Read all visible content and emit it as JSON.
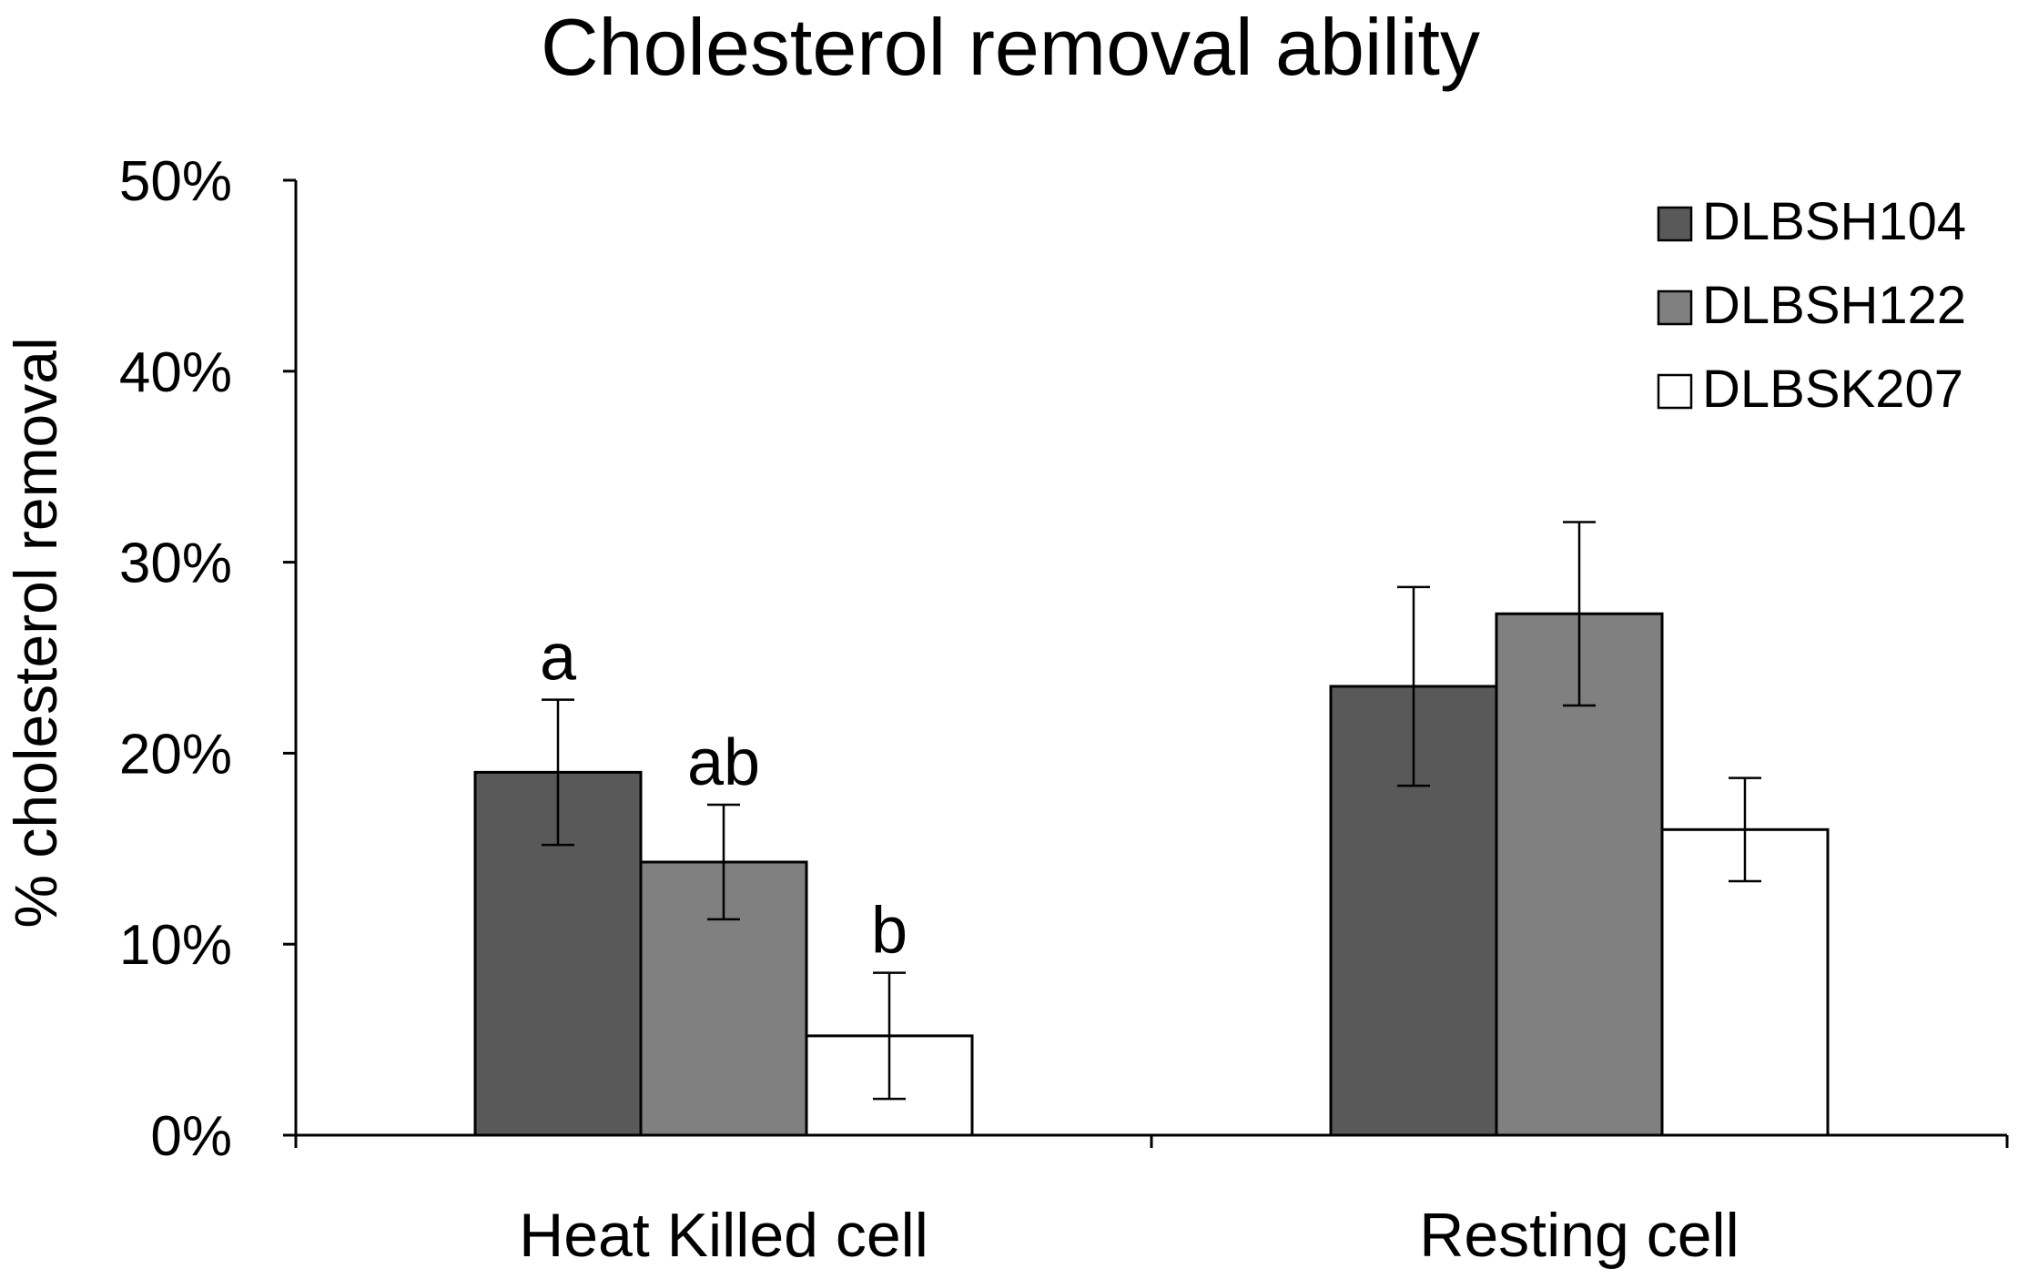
{
  "chart_data": {
    "type": "bar",
    "title": "Cholesterol removal ability",
    "xlabel": "",
    "ylabel": "% cholesterol removal",
    "ylim": [
      0,
      50
    ],
    "yticks": [
      "0%",
      "10%",
      "20%",
      "30%",
      "40%",
      "50%"
    ],
    "ytick_values": [
      0,
      10,
      20,
      30,
      40,
      50
    ],
    "categories": [
      "Heat Killed cell",
      "Resting cell"
    ],
    "legend_position": "top-right",
    "series": [
      {
        "name": "DLBSH104",
        "color": "#595959",
        "values": [
          19.0,
          23.5
        ],
        "errors": [
          3.8,
          5.2
        ]
      },
      {
        "name": "DLBSH122",
        "color": "#808080",
        "values": [
          14.3,
          27.3
        ],
        "errors": [
          3.0,
          4.8
        ]
      },
      {
        "name": "DLBSK207",
        "color": "#ffffff",
        "values": [
          5.2,
          16.0
        ],
        "errors": [
          3.3,
          2.7
        ]
      }
    ],
    "annotations": [
      {
        "category": 0,
        "series": 0,
        "text": "a"
      },
      {
        "category": 0,
        "series": 1,
        "text": "ab"
      },
      {
        "category": 0,
        "series": 2,
        "text": "b"
      }
    ],
    "grid": false
  }
}
